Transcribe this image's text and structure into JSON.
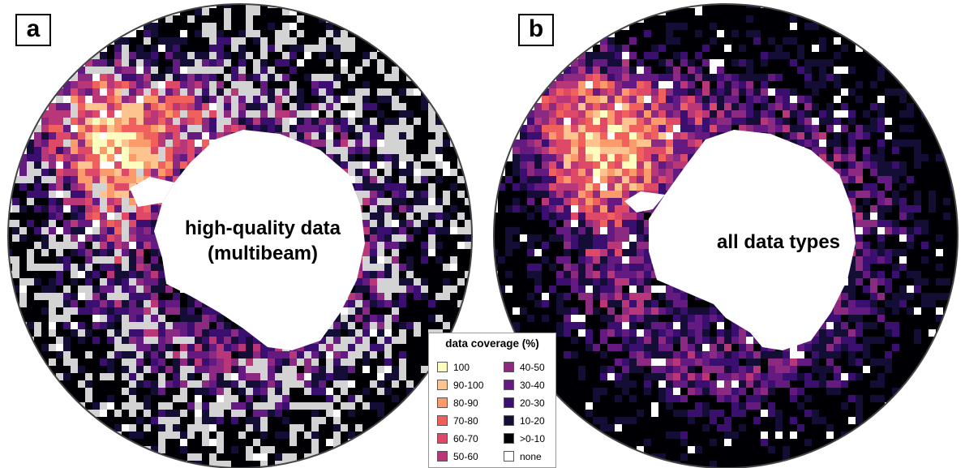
{
  "panels": [
    {
      "id": "a",
      "label": "a",
      "caption_line1": "high-quality data",
      "caption_line2": "(multibeam)"
    },
    {
      "id": "b",
      "label": "b",
      "caption": "all data types"
    }
  ],
  "legend": {
    "title": "data coverage (%)",
    "items": [
      {
        "label": "100",
        "color": "#fcfdbf"
      },
      {
        "label": "90-100",
        "color": "#fdc48f"
      },
      {
        "label": "80-90",
        "color": "#fb9b6c"
      },
      {
        "label": "70-80",
        "color": "#f0605d"
      },
      {
        "label": "60-70",
        "color": "#de4968"
      },
      {
        "label": "50-60",
        "color": "#b73779"
      },
      {
        "label": "40-50",
        "color": "#8c2981"
      },
      {
        "label": "30-40",
        "color": "#641a80"
      },
      {
        "label": "20-30",
        "color": "#3b0f70"
      },
      {
        "label": "10-20",
        "color": "#140e36"
      },
      {
        "label": ">0-10",
        "color": "#000004"
      },
      {
        "label": "none",
        "color": "#ffffff"
      }
    ],
    "no_multibeam_color": "#d3d3d3"
  }
}
